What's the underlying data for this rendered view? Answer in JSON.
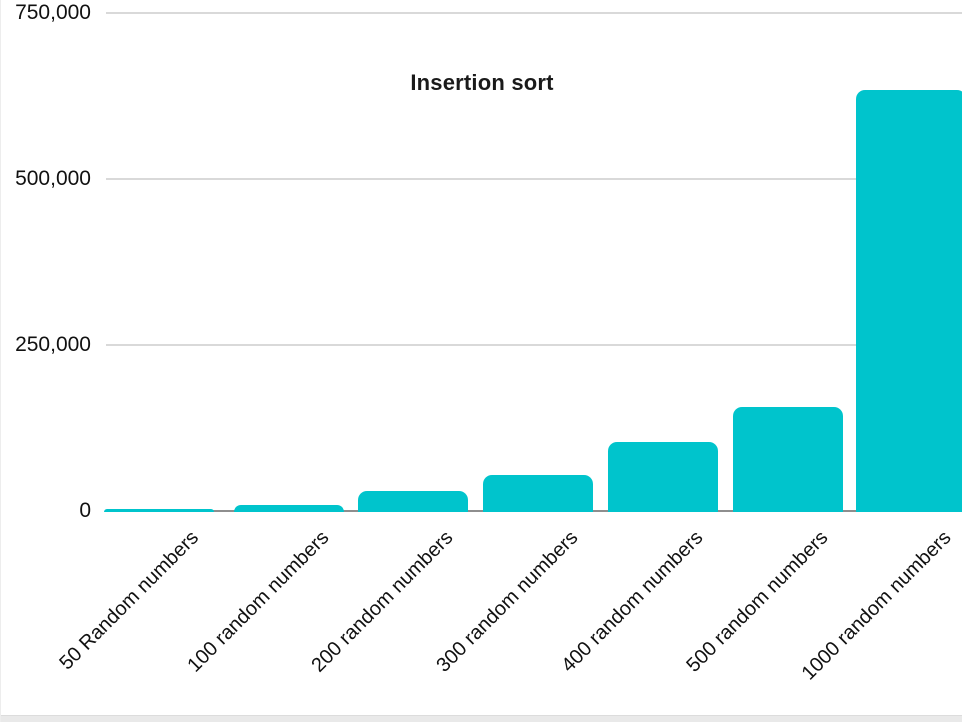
{
  "window": {
    "background": "#ffffff",
    "scrollbar_track_color": "#e9e9e9"
  },
  "chart_data": {
    "type": "bar",
    "title": "Insertion sort",
    "categories": [
      "50 Random numbers",
      "100 random numbers",
      "200 random numbers",
      "300 random numbers",
      "400 random numbers",
      "500 random numbers",
      "1000 random numbers"
    ],
    "values": [
      4000,
      10000,
      31000,
      56000,
      105000,
      158000,
      635000
    ],
    "xlabel": "",
    "ylabel": "",
    "ylim": [
      0,
      750000
    ],
    "yticks": [
      {
        "value": 0,
        "label": "0"
      },
      {
        "value": 250000,
        "label": "250,000"
      },
      {
        "value": 500000,
        "label": "500,000"
      },
      {
        "value": 750000,
        "label": "750,000"
      }
    ],
    "grid": true,
    "legend": false,
    "bar_color": "#00C4CC",
    "gridline_color": "#d9d9d9",
    "axis_line_color": "#8e8e8e",
    "text_color": "#1a1a1a",
    "x_label_rotation_deg": -45
  }
}
